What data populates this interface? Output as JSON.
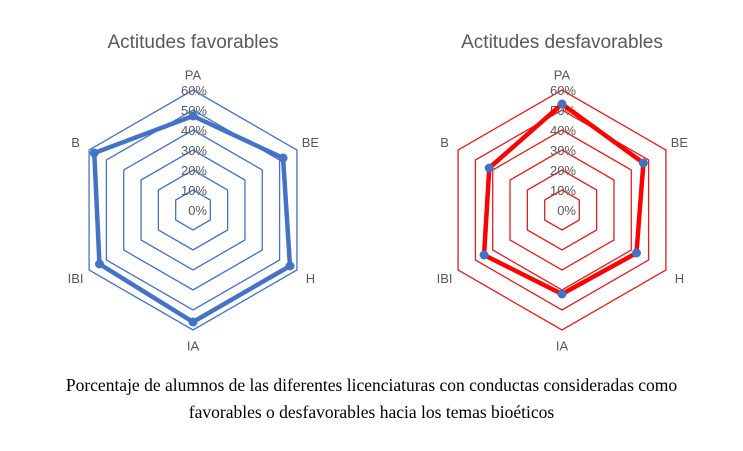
{
  "chart_data": [
    {
      "type": "radar",
      "title": "Actitudes favorables",
      "categories": [
        "PA",
        "BE",
        "H",
        "IA",
        "IBI",
        "B"
      ],
      "ticks": [
        "0%",
        "10%",
        "20%",
        "30%",
        "40%",
        "50%",
        "60%"
      ],
      "rlim": [
        0,
        60
      ],
      "values": [
        47,
        52,
        56,
        56,
        54,
        57
      ],
      "grid_color": "#4472C4",
      "series_color": "#4472C4",
      "marker_color": "#4472C4"
    },
    {
      "type": "radar",
      "title": "Actitudes desfavorables",
      "categories": [
        "PA",
        "BE",
        "H",
        "IA",
        "IBI",
        "B"
      ],
      "ticks": [
        "0%",
        "10%",
        "20%",
        "30%",
        "40%",
        "50%",
        "60%"
      ],
      "rlim": [
        0,
        60
      ],
      "values": [
        53,
        47,
        43,
        42,
        45,
        42
      ],
      "grid_color": "#E02020",
      "series_color": "#FF0000",
      "marker_color": "#4472C4"
    }
  ],
  "caption": {
    "line1": "Porcentaje de alumnos de las diferentes licenciaturas con conductas consideradas como",
    "line2": "favorables o desfavorables hacia los temas bioéticos"
  }
}
